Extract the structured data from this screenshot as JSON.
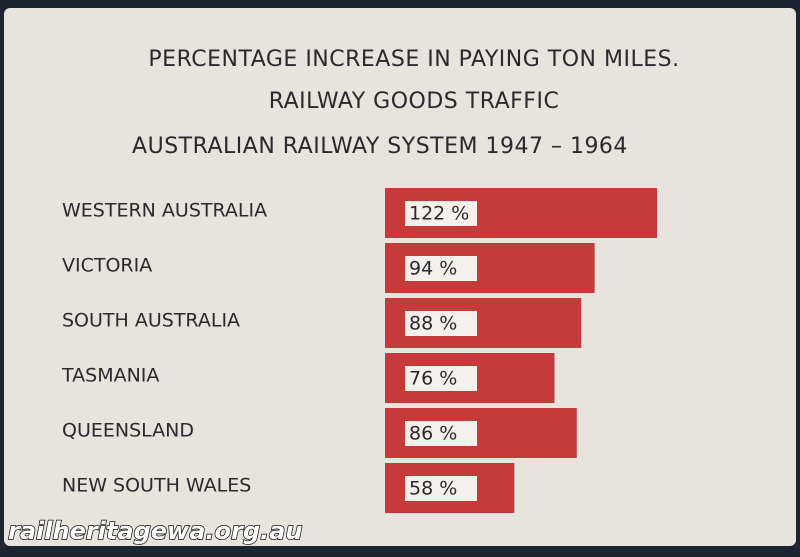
{
  "chart_data": {
    "type": "hbar",
    "title": "PERCENTAGE INCREASE IN PAYING TON MILES.",
    "subtitle": [
      "RAILWAY GOODS TRAFFIC",
      "AUSTRALIAN RAILWAY SYSTEM 1947 – 1964"
    ],
    "categories": [
      "WESTERN AUSTRALIA",
      "VICTORIA",
      "SOUTH AUSTRALIA",
      "TASMANIA",
      "QUEENSLAND",
      "NEW SOUTH WALES"
    ],
    "values": [
      122,
      94,
      88,
      76,
      86,
      58
    ],
    "value_labels": [
      "122 %",
      "94 %",
      "88 %",
      "76 %",
      "86 %",
      "58 %"
    ],
    "color": "#c63a3a"
  },
  "watermark": "railheritagewa.org.au"
}
